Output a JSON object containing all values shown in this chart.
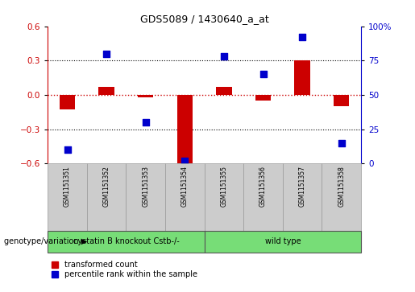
{
  "title": "GDS5089 / 1430640_a_at",
  "samples": [
    "GSM1151351",
    "GSM1151352",
    "GSM1151353",
    "GSM1151354",
    "GSM1151355",
    "GSM1151356",
    "GSM1151357",
    "GSM1151358"
  ],
  "transformed_count": [
    -0.13,
    0.07,
    -0.02,
    -0.6,
    0.07,
    -0.05,
    0.3,
    -0.1
  ],
  "percentile_rank": [
    10,
    80,
    30,
    2,
    78,
    65,
    92,
    15
  ],
  "ylim_left": [
    -0.6,
    0.6
  ],
  "ylim_right": [
    0,
    100
  ],
  "yticks_left": [
    -0.6,
    -0.3,
    0.0,
    0.3,
    0.6
  ],
  "yticks_right": [
    0,
    25,
    50,
    75,
    100
  ],
  "ytick_labels_right": [
    "0",
    "25",
    "50",
    "75",
    "100%"
  ],
  "bar_color": "#cc0000",
  "scatter_color": "#0000cc",
  "group1_label": "cystatin B knockout Cstb-/-",
  "group1_samples": [
    0,
    1,
    2,
    3
  ],
  "group2_label": "wild type",
  "group2_samples": [
    4,
    5,
    6,
    7
  ],
  "group_color": "#77dd77",
  "sample_box_color": "#cccccc",
  "xlabel_genotype": "genotype/variation",
  "legend_bar": "transformed count",
  "legend_scatter": "percentile rank within the sample",
  "bar_width": 0.4,
  "scatter_size": 35,
  "background_color": "#ffffff",
  "zero_line_color": "#cc0000",
  "dotted_line_color": "#000000",
  "left_spine_color": "#cc0000",
  "right_spine_color": "#0000cc"
}
